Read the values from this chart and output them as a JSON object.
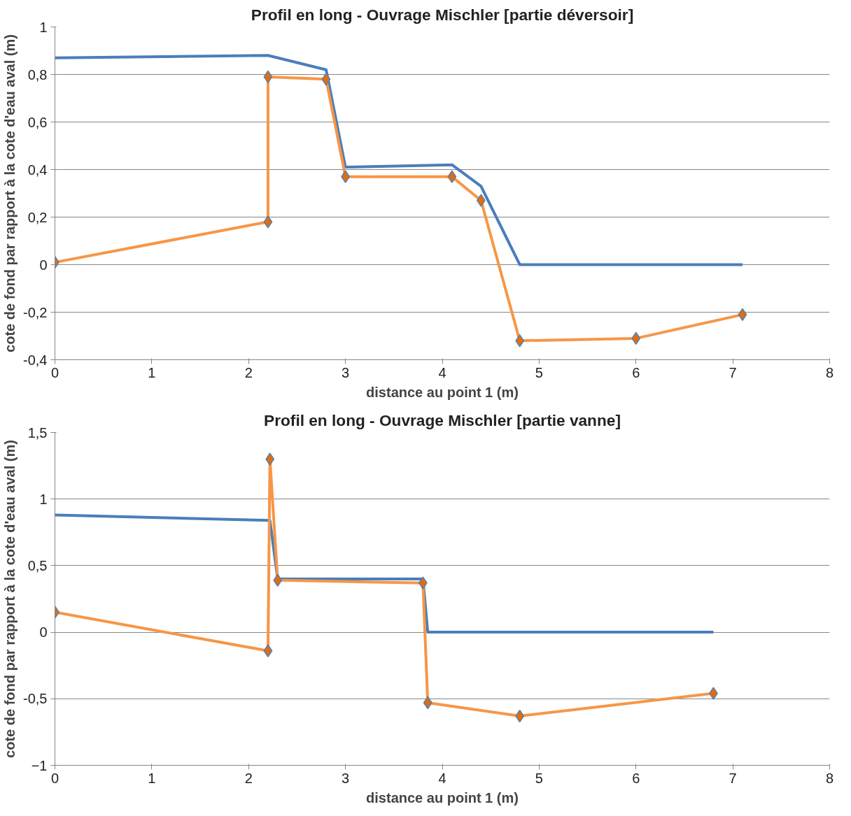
{
  "chart_data": [
    {
      "type": "line",
      "title": "Profil en long - Ouvrage Mischler [partie déversoir]",
      "xlabel": "distance au point 1 (m)",
      "ylabel": "cote de fond par rapport à la cote d'eau aval (m)",
      "xlim": [
        0,
        8
      ],
      "ylim": [
        -0.4,
        1
      ],
      "xticks": [
        0,
        1,
        2,
        3,
        4,
        5,
        6,
        7,
        8
      ],
      "yticks": [
        {
          "value": -0.4,
          "label": "-0,4"
        },
        {
          "value": -0.2,
          "label": "-0,2"
        },
        0,
        {
          "value": 0.2,
          "label": "0,2"
        },
        {
          "value": 0.4,
          "label": "0,4"
        },
        {
          "value": 0.6,
          "label": "0,6"
        },
        {
          "value": 0.8,
          "label": "0,8"
        },
        1
      ],
      "grid": "y",
      "series": [
        {
          "color": "#4a7ebb",
          "marker": "none",
          "x": [
            0,
            2.2,
            2.8,
            3,
            4.1,
            4.4,
            4.8,
            7.1
          ],
          "values": [
            0.87,
            0.88,
            0.82,
            0.41,
            0.42,
            0.33,
            0,
            0
          ]
        },
        {
          "color": "#f79646",
          "marker": "diamond",
          "x": [
            0,
            2.2,
            2.2,
            2.8,
            3,
            4.1,
            4.4,
            4.8,
            6,
            7.1
          ],
          "values": [
            0.01,
            0.18,
            0.79,
            0.78,
            0.37,
            0.37,
            0.27,
            -0.32,
            -0.31,
            -0.21
          ]
        }
      ]
    },
    {
      "type": "line",
      "title": "Profil en long - Ouvrage Mischler [partie vanne]",
      "xlabel": "distance au point 1 (m)",
      "ylabel": "cote de fond par rapport à la cote d'eau aval (m)",
      "xlim": [
        0,
        8
      ],
      "ylim": [
        -1,
        1.5
      ],
      "xticks": [
        0,
        1,
        2,
        3,
        4,
        5,
        6,
        7,
        8
      ],
      "yticks": [
        -1,
        {
          "value": -0.5,
          "label": "-0,5"
        },
        0,
        {
          "value": 0.5,
          "label": "0,5"
        },
        1,
        {
          "value": 1.5,
          "label": "1,5"
        }
      ],
      "grid": "y",
      "series": [
        {
          "color": "#4a7ebb",
          "marker": "none",
          "x": [
            0,
            2.22,
            2.3,
            3.8,
            3.85,
            6.8
          ],
          "values": [
            0.88,
            0.84,
            0.4,
            0.4,
            0,
            0
          ]
        },
        {
          "color": "#f79646",
          "marker": "diamond",
          "x": [
            0,
            2.2,
            2.22,
            2.3,
            3.8,
            3.85,
            4.8,
            6.8
          ],
          "values": [
            0.15,
            -0.14,
            1.3,
            0.39,
            0.37,
            -0.53,
            -0.63,
            -0.46
          ]
        }
      ]
    }
  ]
}
